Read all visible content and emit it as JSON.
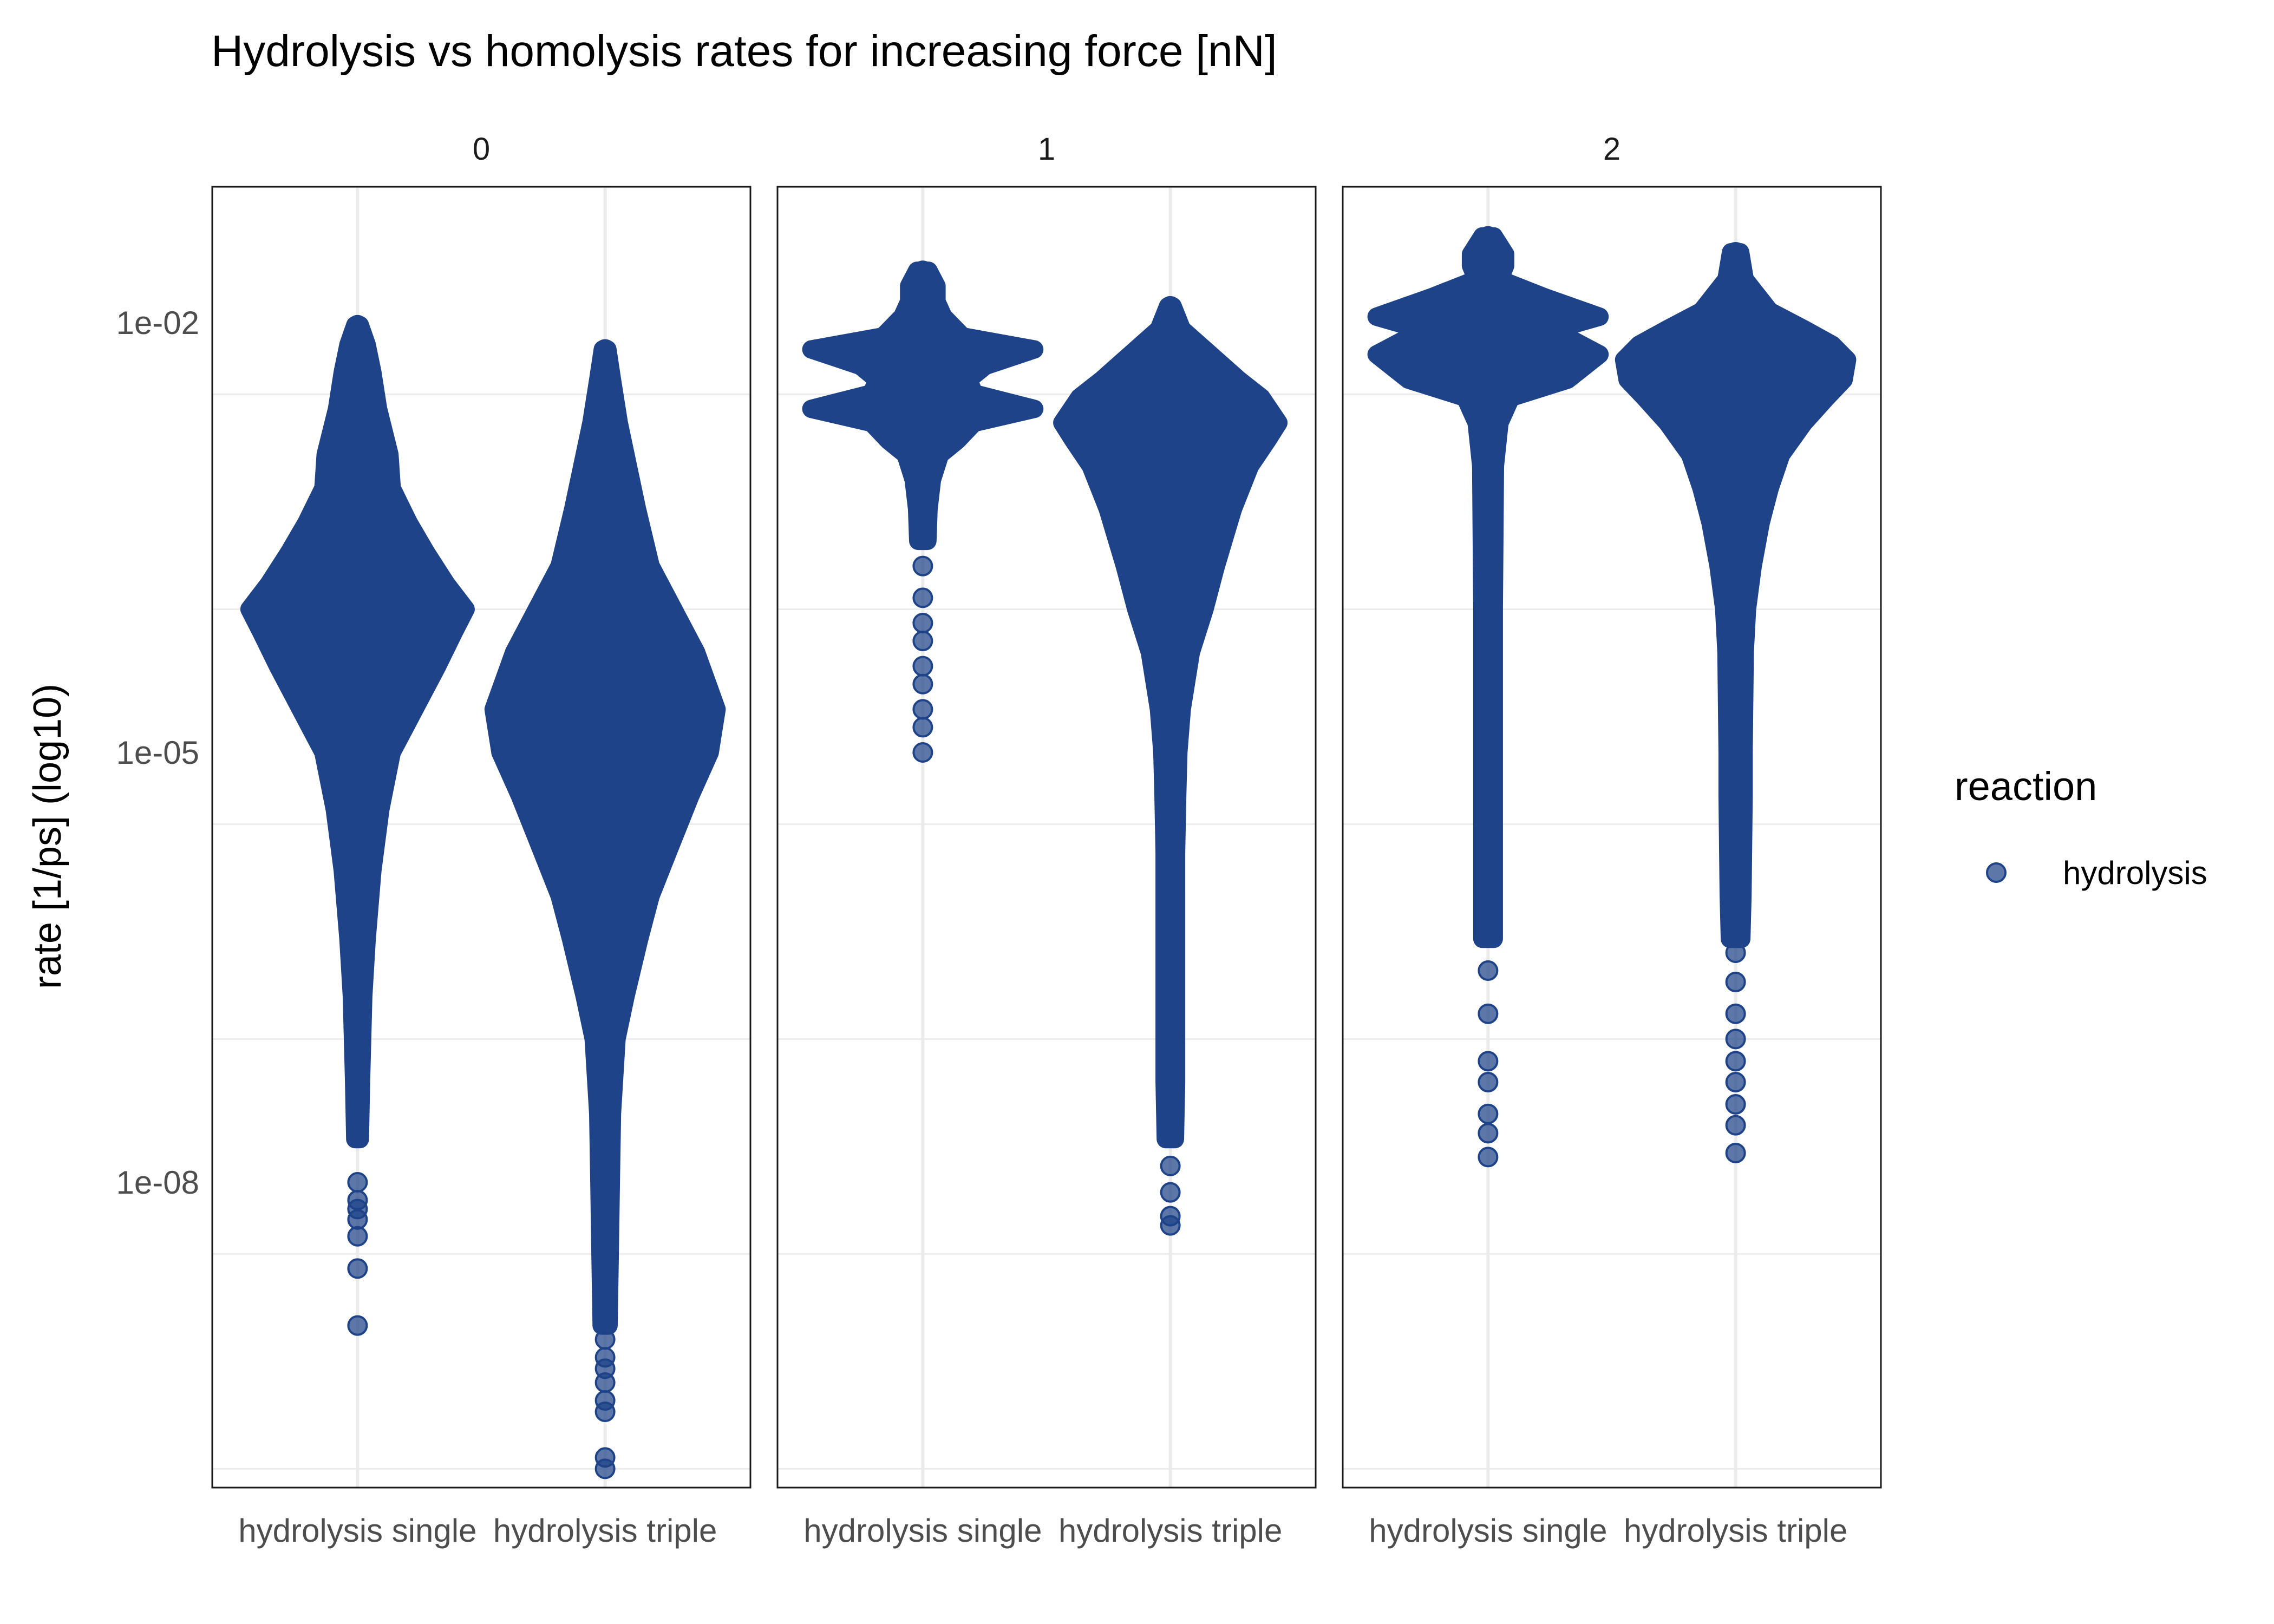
{
  "chart_data": {
    "type": "beeswarm",
    "title": "Hydrolysis vs homolysis rates for increasing force [nN]",
    "xlabel": "",
    "ylabel": "rate [1/ps] (log10)",
    "y_scale": "log10",
    "y_ticks": [
      "1e-02",
      "1e-05",
      "1e-08"
    ],
    "y_tick_values": [
      0.01,
      1e-05,
      1e-08
    ],
    "ylim": [
      3e-12,
      0.1
    ],
    "grid": true,
    "legend": {
      "title": "reaction",
      "position": "right",
      "entries": [
        {
          "label": "hydrolysis",
          "color": "#1f4388"
        }
      ]
    },
    "color": "#1f4388",
    "categories": [
      "hydrolysis single",
      "hydrolysis triple"
    ],
    "facets": [
      {
        "label": "0",
        "groups": [
          {
            "name": "hydrolysis single",
            "max": 0.0096,
            "profile": [
              [
                0.0096,
                0.02
              ],
              [
                0.007,
                0.08
              ],
              [
                0.0045,
                0.13
              ],
              [
                0.0025,
                0.18
              ],
              [
                0.0012,
                0.28
              ],
              [
                0.0007,
                0.3
              ],
              [
                0.0004,
                0.45
              ],
              [
                0.00025,
                0.6
              ],
              [
                0.00015,
                0.78
              ],
              [
                0.0001,
                0.95
              ],
              [
                7e-05,
                0.85
              ],
              [
                4e-05,
                0.7
              ],
              [
                2e-05,
                0.5
              ],
              [
                1e-05,
                0.3
              ],
              [
                4e-06,
                0.2
              ],
              [
                1.5e-06,
                0.13
              ],
              [
                5e-07,
                0.08
              ],
              [
                2e-07,
                0.05
              ],
              [
                5e-08,
                0.03
              ],
              [
                2e-08,
                0.02
              ]
            ],
            "outliers": [
              1e-08,
              7.5e-09,
              6.5e-09,
              5.5e-09,
              4.2e-09,
              2.5e-09,
              1e-09
            ]
          },
          {
            "name": "hydrolysis triple",
            "max": 0.0065,
            "profile": [
              [
                0.0065,
                0.02
              ],
              [
                0.004,
                0.06
              ],
              [
                0.002,
                0.12
              ],
              [
                0.001,
                0.2
              ],
              [
                0.0005,
                0.28
              ],
              [
                0.0002,
                0.4
              ],
              [
                0.0001,
                0.6
              ],
              [
                5e-05,
                0.8
              ],
              [
                2e-05,
                0.98
              ],
              [
                1e-05,
                0.92
              ],
              [
                5e-06,
                0.75
              ],
              [
                2e-06,
                0.55
              ],
              [
                1e-06,
                0.4
              ],
              [
                5e-07,
                0.3
              ],
              [
                2e-07,
                0.18
              ],
              [
                1e-07,
                0.1
              ],
              [
                3e-08,
                0.06
              ],
              [
                1e-08,
                0.05
              ],
              [
                3e-09,
                0.04
              ],
              [
                1e-09,
                0.03
              ]
            ],
            "outliers": [
              8e-10,
              6e-10,
              5e-10,
              4e-10,
              3e-10,
              2.5e-10,
              1.2e-10,
              1e-10
            ]
          }
        ]
      },
      {
        "label": "1",
        "groups": [
          {
            "name": "hydrolysis single",
            "max": 0.023,
            "profile": [
              [
                0.023,
                0.05
              ],
              [
                0.018,
                0.12
              ],
              [
                0.014,
                0.12
              ],
              [
                0.011,
                0.18
              ],
              [
                0.008,
                0.35
              ],
              [
                0.0065,
                0.98
              ],
              [
                0.005,
                0.55
              ],
              [
                0.004,
                0.4
              ],
              [
                0.0032,
                0.45
              ],
              [
                0.0025,
                0.98
              ],
              [
                0.002,
                0.45
              ],
              [
                0.0015,
                0.3
              ],
              [
                0.0012,
                0.15
              ],
              [
                0.0008,
                0.08
              ],
              [
                0.0005,
                0.05
              ],
              [
                0.0003,
                0.04
              ]
            ],
            "outliers": [
              0.0002,
              0.00012,
              8e-05,
              6e-05,
              4e-05,
              3e-05,
              2e-05,
              1.5e-05,
              1e-05
            ]
          },
          {
            "name": "hydrolysis triple",
            "max": 0.013,
            "profile": [
              [
                0.013,
                0.02
              ],
              [
                0.009,
                0.1
              ],
              [
                0.006,
                0.35
              ],
              [
                0.004,
                0.6
              ],
              [
                0.003,
                0.8
              ],
              [
                0.002,
                0.95
              ],
              [
                0.0015,
                0.85
              ],
              [
                0.001,
                0.7
              ],
              [
                0.0005,
                0.55
              ],
              [
                0.0002,
                0.4
              ],
              [
                0.0001,
                0.3
              ],
              [
                5e-05,
                0.18
              ],
              [
                2e-05,
                0.1
              ],
              [
                1e-05,
                0.07
              ],
              [
                5e-06,
                0.06
              ],
              [
                2e-06,
                0.05
              ],
              [
                1e-06,
                0.05
              ],
              [
                5e-07,
                0.05
              ],
              [
                2e-07,
                0.05
              ],
              [
                1e-07,
                0.05
              ],
              [
                5e-08,
                0.05
              ],
              [
                2e-08,
                0.04
              ]
            ],
            "outliers": [
              1.3e-08,
              8.5e-09,
              5.8e-09,
              5e-09
            ]
          }
        ]
      },
      {
        "label": "2",
        "groups": [
          {
            "name": "hydrolysis single",
            "max": 0.04,
            "profile": [
              [
                0.04,
                0.05
              ],
              [
                0.03,
                0.15
              ],
              [
                0.025,
                0.15
              ],
              [
                0.02,
                0.1
              ],
              [
                0.015,
                0.5
              ],
              [
                0.011,
                0.98
              ],
              [
                0.009,
                0.6
              ],
              [
                0.0075,
                0.75
              ],
              [
                0.006,
                0.98
              ],
              [
                0.004,
                0.7
              ],
              [
                0.003,
                0.2
              ],
              [
                0.002,
                0.1
              ],
              [
                0.001,
                0.06
              ],
              [
                0.0001,
                0.05
              ],
              [
                1e-05,
                0.05
              ],
              [
                1e-06,
                0.05
              ],
              [
                5e-07,
                0.05
              ]
            ],
            "outliers": [
              3e-07,
              1.5e-07,
              7e-08,
              5e-08,
              3e-08,
              2.2e-08,
              1.5e-08
            ]
          },
          {
            "name": "hydrolysis triple",
            "max": 0.031,
            "profile": [
              [
                0.031,
                0.04
              ],
              [
                0.02,
                0.08
              ],
              [
                0.012,
                0.3
              ],
              [
                0.009,
                0.6
              ],
              [
                0.007,
                0.85
              ],
              [
                0.0055,
                0.98
              ],
              [
                0.004,
                0.95
              ],
              [
                0.003,
                0.8
              ],
              [
                0.002,
                0.6
              ],
              [
                0.0012,
                0.4
              ],
              [
                0.0007,
                0.3
              ],
              [
                0.0004,
                0.22
              ],
              [
                0.0002,
                0.15
              ],
              [
                0.0001,
                0.1
              ],
              [
                5e-05,
                0.08
              ],
              [
                1e-05,
                0.07
              ],
              [
                5e-06,
                0.07
              ],
              [
                1e-06,
                0.06
              ],
              [
                5e-07,
                0.05
              ]
            ],
            "outliers": [
              4e-07,
              2.5e-07,
              1.5e-07,
              1e-07,
              7e-08,
              5e-08,
              3.5e-08,
              2.5e-08,
              1.6e-08
            ]
          }
        ]
      }
    ]
  }
}
